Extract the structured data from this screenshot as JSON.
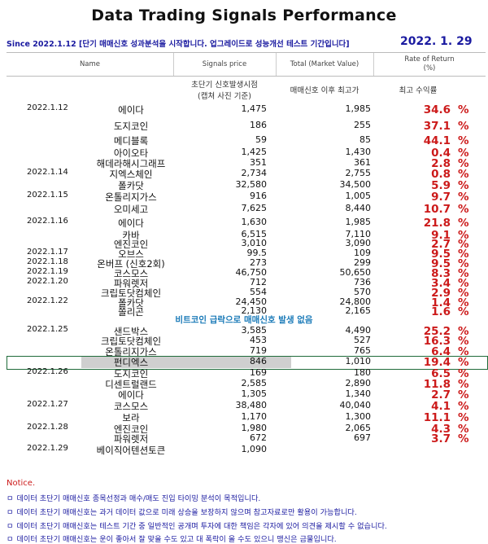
{
  "title": "Data Trading Signals Performance",
  "subtitle": "Since 2022.1.12  [단기 매매신호 성과분석을 시작합니다. 업그레이드로 성능개선 테스트 기간입니다]",
  "report_date": "2022. 1. 29",
  "headers": {
    "name": "Name",
    "signals_price": "Signals price",
    "total": "Total (Market Value)",
    "rate": "Rate of Return\n(%)",
    "sub_price_1": "초단기 신호발생시점",
    "sub_price_2": "(캡쳐 사진 기준)",
    "sub_total": "매매신호 이후 최고가",
    "sub_rate": "최고 수익률"
  },
  "no_signal_text": "비트코인 급락으로 매매신호 발생 없음",
  "rows": [
    {
      "date": "2022.1.12",
      "name": "에이다",
      "price": "1,475",
      "max": "1,985",
      "pct": "34.6",
      "sym": "%"
    },
    {
      "date": "",
      "name": "도지코인",
      "price": "186",
      "max": "255",
      "pct": "37.1",
      "sym": "%"
    },
    {
      "date": "",
      "name": "메디블록",
      "price": "59",
      "max": "85",
      "pct": "44.1",
      "sym": "%"
    },
    {
      "date": "",
      "name": "아이오타",
      "price": "1,425",
      "max": "1,430",
      "pct": "0.4",
      "sym": "%"
    },
    {
      "date": "",
      "name": "해데라해시그래프",
      "price": "351",
      "max": "361",
      "pct": "2.8",
      "sym": "%"
    },
    {
      "date": "2022.1.14",
      "name": "지엑스체인",
      "price": "2,734",
      "max": "2,755",
      "pct": "0.8",
      "sym": "%"
    },
    {
      "date": "",
      "name": "폴카닷",
      "price": "32,580",
      "max": "34,500",
      "pct": "5.9",
      "sym": "%"
    },
    {
      "date": "2022.1.15",
      "name": "온톨리지가스",
      "price": "916",
      "max": "1,005",
      "pct": "9.7",
      "sym": "%"
    },
    {
      "date": "",
      "name": "오미세고",
      "price": "7,625",
      "max": "8,440",
      "pct": "10.7",
      "sym": "%"
    },
    {
      "date": "2022.1.16",
      "name": "에이다",
      "price": "1,630",
      "max": "1,985",
      "pct": "21.8",
      "sym": "%"
    },
    {
      "date": "",
      "name": "카바",
      "price": "6,515",
      "max": "7,110",
      "pct": "9.1",
      "sym": "%"
    },
    {
      "date": "",
      "name": "엔진코인",
      "price": "3,010",
      "max": "3,090",
      "pct": "2.7",
      "sym": "%"
    },
    {
      "date": "2022.1.17",
      "name": "오브스",
      "price": "99.5",
      "max": "109",
      "pct": "9.5",
      "sym": "%"
    },
    {
      "date": "2022.1.18",
      "name": "온버프 (신호2회)",
      "price": "273",
      "max": "299",
      "pct": "9.5",
      "sym": "%"
    },
    {
      "date": "2022.1.19",
      "name": "코스모스",
      "price": "46,750",
      "max": "50,650",
      "pct": "8.3",
      "sym": "%"
    },
    {
      "date": "2022.1.20",
      "name": "파워렛저",
      "price": "712",
      "max": "736",
      "pct": "3.4",
      "sym": "%"
    },
    {
      "date": "",
      "name": "크립토닷컴체인",
      "price": "554",
      "max": "570",
      "pct": "2.9",
      "sym": "%"
    },
    {
      "date": "2022.1.22",
      "name": "폴카닷",
      "price": "24,450",
      "max": "24,800",
      "pct": "1.4",
      "sym": "%"
    },
    {
      "date": "",
      "name": "쫄리곤",
      "price": "2,130",
      "max": "2,165",
      "pct": "1.6",
      "sym": "%"
    },
    {
      "date": "2022.1.25",
      "name": "샌드박스",
      "price": "3,585",
      "max": "4,490",
      "pct": "25.2",
      "sym": "%"
    },
    {
      "date": "",
      "name": "크립토닷컴체인",
      "price": "453",
      "max": "527",
      "pct": "16.3",
      "sym": "%"
    },
    {
      "date": "",
      "name": "온톨리지가스",
      "price": "719",
      "max": "765",
      "pct": "6.4",
      "sym": "%"
    },
    {
      "date": "",
      "name": "펀디엑스",
      "price": "846",
      "max": "1,010",
      "pct": "19.4",
      "sym": "%"
    },
    {
      "date": "2022.1.26",
      "name": "도지코인",
      "price": "169",
      "max": "180",
      "pct": "6.5",
      "sym": "%"
    },
    {
      "date": "",
      "name": "디센트럴랜드",
      "price": "2,585",
      "max": "2,890",
      "pct": "11.8",
      "sym": "%"
    },
    {
      "date": "",
      "name": "에이다",
      "price": "1,305",
      "max": "1,340",
      "pct": "2.7",
      "sym": "%"
    },
    {
      "date": "2022.1.27",
      "name": "코스모스",
      "price": "38,480",
      "max": "40,040",
      "pct": "4.1",
      "sym": "%"
    },
    {
      "date": "",
      "name": "보라",
      "price": "1,170",
      "max": "1,300",
      "pct": "11.1",
      "sym": "%"
    },
    {
      "date": "2022.1.28",
      "name": "엔진코인",
      "price": "1,980",
      "max": "2,065",
      "pct": "4.3",
      "sym": "%"
    },
    {
      "date": "",
      "name": "파워렛저",
      "price": "672",
      "max": "697",
      "pct": "3.7",
      "sym": "%"
    },
    {
      "date": "2022.1.29",
      "name": "베이직어텐션토큰",
      "price": "1,090",
      "max": "",
      "pct": "",
      "sym": ""
    }
  ],
  "notice": {
    "title": "Notice.",
    "bullet": "ㅁ",
    "lines": [
      "데이터 초단기 매매신호 종목선정과 매수/매도 진입 타이밍 분석이 목적입니다.",
      "데이터 초단기 매매신호는 과거 데이터 값으로 미래 상승을 보장하지 않으며 참고자료로만 활용이 가능합니다.",
      "데이터 초단기 매매신호는 테스트 기간 중 일반적인 공개며 투자에 대한 책임은 각자에 있어 의견을 제시할 수 없습니다.",
      "데이터 초단기 매매신호는 운이 좋아서 잘 맞을 수도 있고 대 폭락이 올 수도 있으니 맹신은 금물입니다."
    ]
  }
}
